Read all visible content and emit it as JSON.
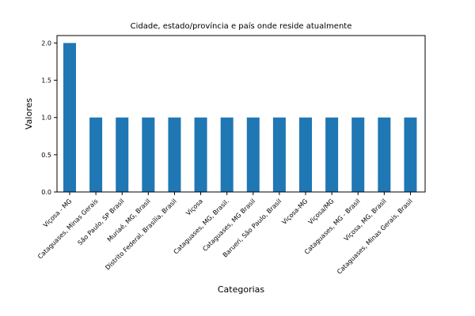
{
  "chart_data": {
    "type": "bar",
    "title": "Cidade, estado/província e país onde reside atualmente",
    "xlabel": "Categorias",
    "ylabel": "Valores",
    "ylim": [
      0,
      2.1
    ],
    "yticks": [
      "0.0",
      "0.5",
      "1.0",
      "1.5",
      "2.0"
    ],
    "grid": false,
    "categories": [
      "Viçosa - MG",
      "Cataguases, Minas Gerais",
      "São Paulo, SP Brasil",
      "Muriaé, MG, Brasil",
      "Distrito Federal, Brasília, Brasil",
      "Viçosa",
      "Cataguases, MG, Brasil.",
      "Cataguases, MG Brasil",
      "Barueri, São Paulo, Brasil",
      "Viçosa-MG",
      "Viçosa/MG",
      "Cataguases, MG - Brasil",
      "Viçosa, MG, Brasil",
      "Cataguases, Minas Gerais, Brasil"
    ],
    "values": [
      2,
      1,
      1,
      1,
      1,
      1,
      1,
      1,
      1,
      1,
      1,
      1,
      1,
      1
    ],
    "colors": {
      "bar": "#1f77b4"
    }
  }
}
